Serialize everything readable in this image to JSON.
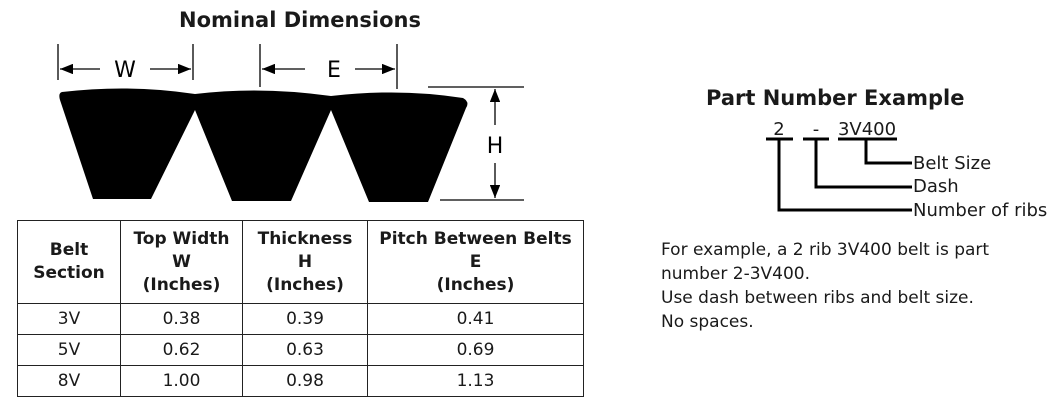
{
  "diagram": {
    "title": "Nominal Dimensions",
    "labels": {
      "w": "W",
      "e": "E",
      "h": "H"
    }
  },
  "table": {
    "headers": [
      [
        "Belt",
        "Section"
      ],
      [
        "Top Width",
        "W",
        "(Inches)"
      ],
      [
        "Thickness",
        "H",
        "(Inches)"
      ],
      [
        "Pitch Between Belts",
        "E",
        "(Inches)"
      ]
    ],
    "rows": [
      [
        "3V",
        "0.38",
        "0.39",
        "0.41"
      ],
      [
        "5V",
        "0.62",
        "0.63",
        "0.69"
      ],
      [
        "8V",
        "1.00",
        "0.98",
        "1.13"
      ]
    ]
  },
  "part_number": {
    "title": "Part Number Example",
    "parts": [
      "2",
      "-",
      "3V400"
    ],
    "labels": [
      "Belt Size",
      "Dash",
      "Number of ribs"
    ],
    "description": [
      "For example, a 2 rib 3V400 belt is part",
      "number 2-3V400.",
      "Use dash between ribs and belt size.",
      "No spaces."
    ]
  }
}
